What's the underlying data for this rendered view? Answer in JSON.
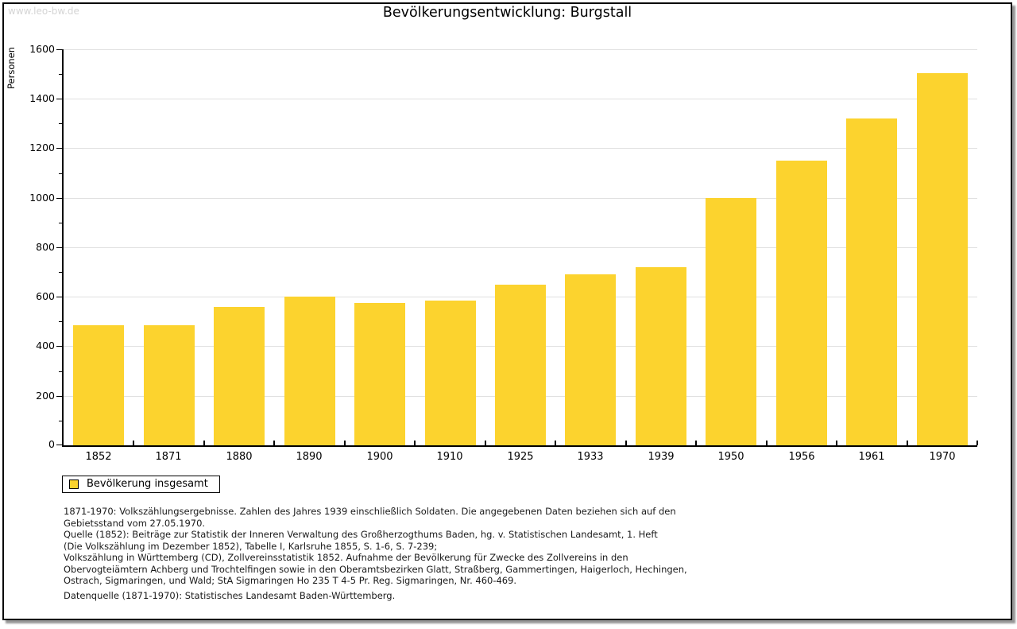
{
  "page": {
    "watermark": "www.leo-bw.de",
    "title": "Bevölkerungsentwicklung: Burgstall"
  },
  "legend": {
    "label": "Bevölkerung insgesamt"
  },
  "colors": {
    "bar": "#FCD32E",
    "gridline": "#E0E0E0",
    "axis": "#000000",
    "watermark": "#D5D5D5"
  },
  "chart_data": {
    "type": "bar",
    "title": "Bevölkerungsentwicklung: Burgstall",
    "series_name": "Bevölkerung insgesamt",
    "categories": [
      "1852",
      "1871",
      "1880",
      "1890",
      "1900",
      "1910",
      "1925",
      "1933",
      "1939",
      "1950",
      "1956",
      "1961",
      "1970"
    ],
    "values": [
      485,
      485,
      560,
      600,
      575,
      585,
      650,
      690,
      720,
      1000,
      1150,
      1320,
      1505
    ],
    "xlabel": "",
    "ylabel": "Personen",
    "ylim": [
      0,
      1600
    ],
    "ytick_step": 200,
    "minor_tick_step": 100,
    "grid": true,
    "legend_position": "bottom-left",
    "bar_color": "#FCD32E"
  },
  "footnotes": {
    "lines": [
      "1871-1970: Volkszählungsergebnisse. Zahlen des Jahres 1939 einschließlich Soldaten. Die angegebenen Daten beziehen sich auf den",
      "Gebietsstand vom 27.05.1970.",
      "Quelle (1852): Beiträge zur Statistik der Inneren Verwaltung des Großherzogthums Baden, hg. v. Statistischen Landesamt, 1. Heft",
      "(Die Volkszählung im Dezember 1852), Tabelle I, Karlsruhe 1855, S. 1-6, S. 7-239;",
      "Volkszählung in Württemberg (CD), Zollvereinsstatistik 1852. Aufnahme der Bevölkerung für Zwecke des Zollvereins in den",
      "Obervogteiämtern Achberg und Trochtelfingen sowie in den Oberamtsbezirken Glatt, Straßberg, Gammertingen, Haigerloch, Hechingen,",
      "Ostrach, Sigmaringen, und Wald; StA Sigmaringen Ho 235 T 4-5 Pr. Reg. Sigmaringen, Nr. 460-469."
    ],
    "datasource": "Datenquelle (1871-1970): Statistisches Landesamt Baden-Württemberg."
  }
}
